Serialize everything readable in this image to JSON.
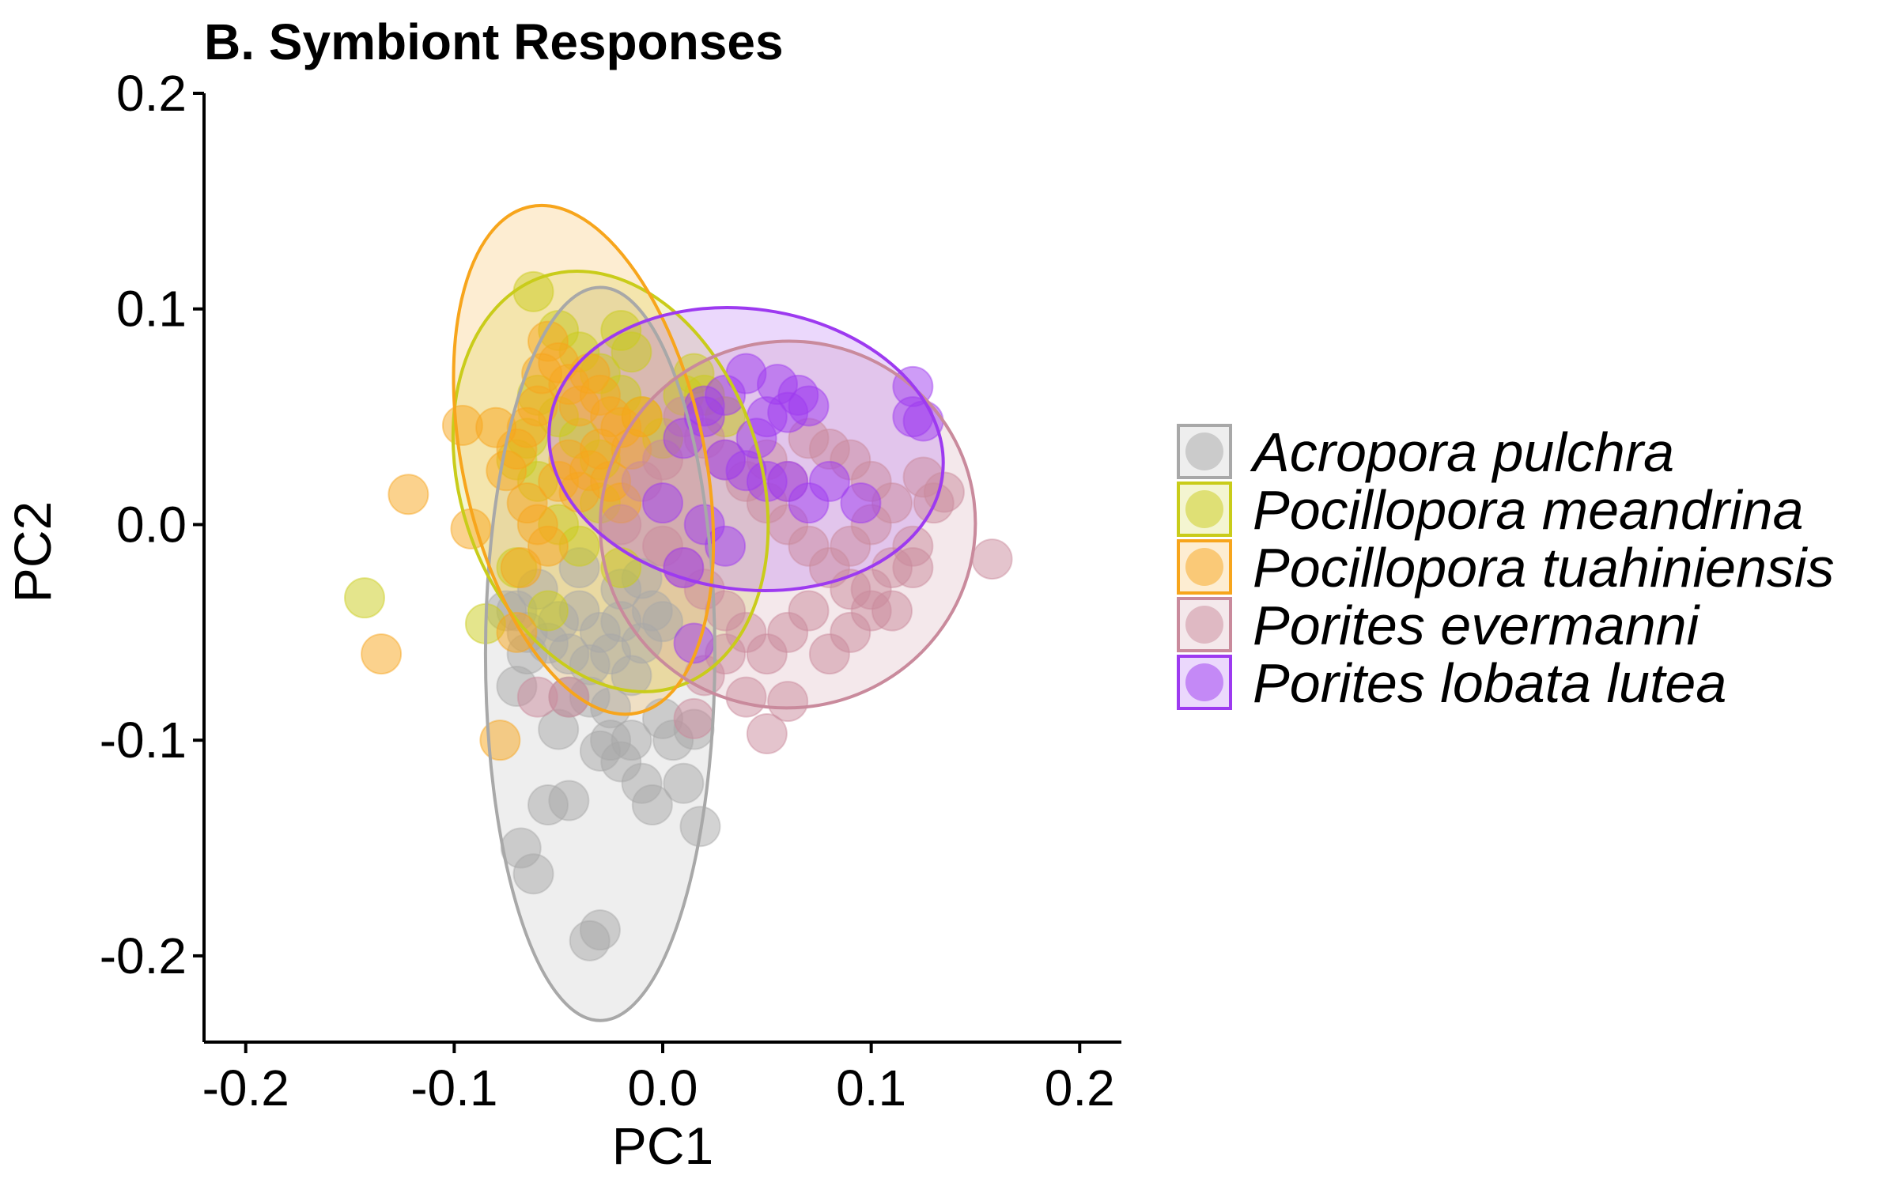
{
  "chart_data": {
    "type": "scatter",
    "title": "B. Symbiont Responses",
    "xlabel": "PC1",
    "ylabel": "PC2",
    "xlim": [
      -0.22,
      0.22
    ],
    "ylim": [
      -0.24,
      0.2
    ],
    "xticks": [
      -0.2,
      -0.1,
      0.0,
      0.1,
      0.2
    ],
    "xtick_labels": [
      "-0.2",
      "-0.1",
      "0.0",
      "0.1",
      "0.2"
    ],
    "yticks": [
      -0.2,
      -0.1,
      0.0,
      0.1,
      0.2
    ],
    "ytick_labels": [
      "-0.2",
      "-0.1",
      "0.0",
      "0.1",
      "0.2"
    ],
    "grid": false,
    "legend_position": "right",
    "series": [
      {
        "name": "Acropora pulchra",
        "color": "#A8A8A8",
        "ellipse": {
          "center": [
            -0.03,
            -0.06
          ],
          "rx": 0.055,
          "ry": 0.17,
          "angle_deg": 0
        },
        "points": [
          [
            -0.07,
            -0.04
          ],
          [
            -0.065,
            -0.05
          ],
          [
            -0.06,
            -0.03
          ],
          [
            -0.055,
            -0.055
          ],
          [
            -0.05,
            -0.045
          ],
          [
            -0.045,
            -0.06
          ],
          [
            -0.04,
            -0.04
          ],
          [
            -0.035,
            -0.065
          ],
          [
            -0.03,
            -0.05
          ],
          [
            -0.025,
            -0.06
          ],
          [
            -0.02,
            -0.045
          ],
          [
            -0.015,
            -0.07
          ],
          [
            -0.01,
            -0.055
          ],
          [
            -0.005,
            -0.04
          ],
          [
            -0.07,
            -0.075
          ],
          [
            -0.05,
            -0.095
          ],
          [
            -0.045,
            -0.08
          ],
          [
            -0.035,
            -0.08
          ],
          [
            -0.03,
            -0.105
          ],
          [
            -0.025,
            -0.1
          ],
          [
            -0.02,
            -0.11
          ],
          [
            -0.015,
            -0.1
          ],
          [
            -0.01,
            -0.12
          ],
          [
            -0.005,
            -0.13
          ],
          [
            0.0,
            -0.09
          ],
          [
            0.005,
            -0.1
          ],
          [
            0.01,
            -0.12
          ],
          [
            0.015,
            -0.095
          ],
          [
            -0.055,
            -0.13
          ],
          [
            -0.045,
            -0.128
          ],
          [
            -0.068,
            -0.15
          ],
          [
            -0.062,
            -0.162
          ],
          [
            0.018,
            -0.14
          ],
          [
            -0.035,
            -0.193
          ],
          [
            -0.03,
            -0.188
          ],
          [
            -0.02,
            -0.03
          ],
          [
            -0.01,
            -0.025
          ],
          [
            0.0,
            -0.045
          ],
          [
            -0.04,
            -0.02
          ],
          [
            -0.065,
            -0.06
          ],
          [
            -0.075,
            -0.04
          ],
          [
            -0.025,
            -0.085
          ]
        ]
      },
      {
        "name": "Pocillopora meandrina",
        "color": "#C9CC1A",
        "ellipse": {
          "center": [
            -0.025,
            0.02
          ],
          "rx": 0.072,
          "ry": 0.1,
          "angle_deg": 18
        },
        "points": [
          [
            -0.062,
            0.108
          ],
          [
            -0.143,
            -0.034
          ],
          [
            -0.085,
            -0.046
          ],
          [
            -0.05,
            0.09
          ],
          [
            -0.04,
            0.08
          ],
          [
            -0.03,
            0.07
          ],
          [
            -0.02,
            0.09
          ],
          [
            -0.015,
            0.08
          ],
          [
            -0.06,
            0.06
          ],
          [
            -0.05,
            0.05
          ],
          [
            -0.04,
            0.04
          ],
          [
            -0.03,
            0.03
          ],
          [
            -0.02,
            0.06
          ],
          [
            -0.01,
            0.05
          ],
          [
            0.0,
            0.04
          ],
          [
            0.01,
            0.06
          ],
          [
            -0.07,
            0.03
          ],
          [
            -0.06,
            0.02
          ],
          [
            -0.05,
            0.0
          ],
          [
            -0.04,
            -0.01
          ],
          [
            -0.03,
            0.01
          ],
          [
            -0.02,
            -0.02
          ],
          [
            -0.07,
            -0.02
          ],
          [
            -0.065,
            0.04
          ],
          [
            0.02,
            0.06
          ],
          [
            0.03,
            0.05
          ],
          [
            0.015,
            0.07
          ],
          [
            -0.055,
            -0.04
          ]
        ]
      },
      {
        "name": "Pocillopora tuahiniensis",
        "color": "#F7A51C",
        "ellipse": {
          "center": [
            -0.038,
            0.03
          ],
          "rx": 0.058,
          "ry": 0.12,
          "angle_deg": 12
        },
        "points": [
          [
            -0.096,
            0.046
          ],
          [
            -0.122,
            0.014
          ],
          [
            -0.135,
            -0.06
          ],
          [
            -0.078,
            -0.1
          ],
          [
            -0.092,
            -0.002
          ],
          [
            -0.055,
            0.085
          ],
          [
            -0.05,
            0.075
          ],
          [
            -0.045,
            0.065
          ],
          [
            -0.04,
            0.055
          ],
          [
            -0.035,
            0.07
          ],
          [
            -0.03,
            0.06
          ],
          [
            -0.025,
            0.05
          ],
          [
            -0.02,
            0.045
          ],
          [
            -0.015,
            0.035
          ],
          [
            -0.01,
            0.05
          ],
          [
            -0.06,
            0.055
          ],
          [
            -0.065,
            0.045
          ],
          [
            -0.07,
            0.035
          ],
          [
            -0.075,
            0.025
          ],
          [
            -0.065,
            0.01
          ],
          [
            -0.06,
            0.0
          ],
          [
            -0.055,
            -0.01
          ],
          [
            -0.05,
            0.02
          ],
          [
            -0.045,
            0.03
          ],
          [
            -0.04,
            0.015
          ],
          [
            -0.035,
            0.025
          ],
          [
            -0.03,
            0.035
          ],
          [
            -0.025,
            0.02
          ],
          [
            -0.02,
            0.01
          ],
          [
            -0.07,
            -0.05
          ],
          [
            -0.068,
            -0.02
          ],
          [
            -0.08,
            0.045
          ],
          [
            -0.058,
            0.07
          ]
        ]
      },
      {
        "name": "Porites evermanni",
        "color": "#C98A9C",
        "ellipse": {
          "center": [
            0.06,
            0.0
          ],
          "rx": 0.09,
          "ry": 0.085,
          "angle_deg": 8
        },
        "points": [
          [
            0.01,
            0.05
          ],
          [
            0.02,
            0.04
          ],
          [
            0.03,
            0.03
          ],
          [
            0.04,
            0.02
          ],
          [
            0.05,
            0.01
          ],
          [
            0.06,
            0.0
          ],
          [
            0.07,
            -0.01
          ],
          [
            0.08,
            -0.02
          ],
          [
            0.09,
            -0.03
          ],
          [
            0.1,
            -0.04
          ],
          [
            0.11,
            -0.02
          ],
          [
            0.12,
            -0.01
          ],
          [
            0.13,
            0.01
          ],
          [
            0.135,
            0.015
          ],
          [
            0.158,
            -0.016
          ],
          [
            0.0,
            -0.01
          ],
          [
            0.01,
            -0.02
          ],
          [
            0.02,
            -0.03
          ],
          [
            0.03,
            -0.04
          ],
          [
            0.04,
            -0.05
          ],
          [
            0.05,
            -0.06
          ],
          [
            0.06,
            -0.05
          ],
          [
            0.07,
            -0.04
          ],
          [
            0.08,
            -0.06
          ],
          [
            0.09,
            -0.05
          ],
          [
            0.1,
            -0.03
          ],
          [
            0.11,
            -0.04
          ],
          [
            0.12,
            -0.02
          ],
          [
            0.04,
            -0.08
          ],
          [
            0.05,
            -0.097
          ],
          [
            0.06,
            -0.082
          ],
          [
            0.02,
            -0.07
          ],
          [
            0.03,
            -0.06
          ],
          [
            0.015,
            -0.09
          ],
          [
            0.07,
            0.04
          ],
          [
            0.08,
            0.035
          ],
          [
            0.09,
            0.03
          ],
          [
            0.1,
            0.02
          ],
          [
            0.11,
            0.01
          ],
          [
            0.05,
            0.03
          ],
          [
            0.06,
            0.02
          ],
          [
            0.0,
            0.03
          ],
          [
            -0.01,
            0.02
          ],
          [
            -0.02,
            0.0
          ],
          [
            -0.06,
            -0.08
          ],
          [
            -0.045,
            -0.08
          ],
          [
            0.09,
            -0.01
          ],
          [
            0.1,
            0.0
          ],
          [
            0.125,
            0.022
          ]
        ]
      },
      {
        "name": "Porites lobata lutea",
        "color": "#9D3AF0",
        "ellipse": {
          "center": [
            0.04,
            0.035
          ],
          "rx": 0.095,
          "ry": 0.065,
          "angle_deg": -8
        },
        "points": [
          [
            0.04,
            0.07
          ],
          [
            0.055,
            0.065
          ],
          [
            0.065,
            0.06
          ],
          [
            0.06,
            0.052
          ],
          [
            0.05,
            0.05
          ],
          [
            0.07,
            0.055
          ],
          [
            0.12,
            0.064
          ],
          [
            0.125,
            0.048
          ],
          [
            0.12,
            0.05
          ],
          [
            0.03,
            0.06
          ],
          [
            0.02,
            0.05
          ],
          [
            0.01,
            0.04
          ],
          [
            0.03,
            0.03
          ],
          [
            0.04,
            0.025
          ],
          [
            0.05,
            0.02
          ],
          [
            0.06,
            0.02
          ],
          [
            0.07,
            0.01
          ],
          [
            0.02,
            0.0
          ],
          [
            0.03,
            -0.01
          ],
          [
            0.01,
            -0.02
          ],
          [
            0.0,
            0.01
          ],
          [
            0.015,
            -0.055
          ],
          [
            0.095,
            0.01
          ],
          [
            0.02,
            0.055
          ],
          [
            0.045,
            0.04
          ],
          [
            0.08,
            0.02
          ]
        ]
      }
    ]
  }
}
